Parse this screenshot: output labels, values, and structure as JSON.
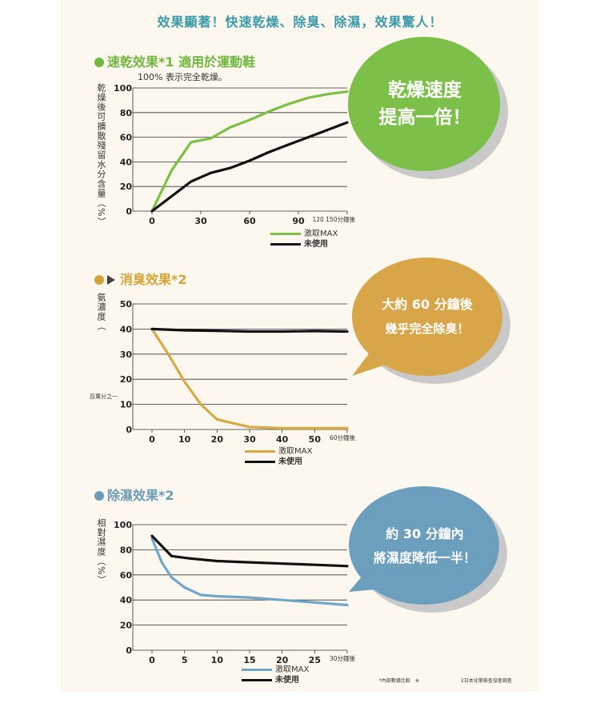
{
  "headline": "效果顯著！快速乾燥、除臭、除濕，效果驚人！",
  "colors": {
    "green": "#7ac143",
    "gold": "#d9a944",
    "blue": "#6fa7c8",
    "black": "#111111",
    "bubble_green": "#7cc04a",
    "bubble_gold": "#d8a548",
    "bubble_blue": "#6c9ebd"
  },
  "sections": [
    {
      "title": "速乾效果*1 適用於運動鞋",
      "note": "100% 表示完全乾燥。",
      "ylabel": "乾燥後可擴散殘留水分含量（%）",
      "legend": [
        "激取MAX",
        "未使用"
      ]
    },
    {
      "title": "消臭效果*2",
      "ylabel": "氨濃度（",
      "unit_note": "百萬分之一",
      "legend": [
        "激取MAX",
        "未使用"
      ]
    },
    {
      "title": "除濕效果*2",
      "ylabel": "相對濕度（%）",
      "legend": [
        "激取MAX",
        "未使用"
      ]
    }
  ],
  "bubbles": [
    {
      "line1": "乾燥速度",
      "line2": "提高一倍！"
    },
    {
      "line1": "大約 60 分鐘後",
      "line2": "幾乎完全除臭！"
    },
    {
      "line1": "約 30 分鐘內",
      "line2": "將濕度降低一半！"
    }
  ],
  "footnotes": [
    "*內部數據比較　※",
    "2日本化學檢查協會調查"
  ],
  "chart_data": [
    {
      "type": "line",
      "ylim": [
        0,
        100
      ],
      "yticks": [
        "0",
        "20",
        "40",
        "60",
        "80",
        "100"
      ],
      "xticks": [
        "0",
        "30",
        "60",
        "90"
      ],
      "xtick_extra": "120 150分鐘後",
      "series": [
        {
          "name": "激取MAX",
          "x": [
            0,
            15,
            30,
            45,
            60,
            75,
            90,
            105,
            120,
            135,
            150
          ],
          "values": [
            0,
            33,
            56,
            59,
            68,
            74,
            81,
            87,
            92,
            95,
            97
          ]
        },
        {
          "name": "未使用",
          "x": [
            0,
            15,
            30,
            45,
            60,
            75,
            90,
            105,
            120,
            135,
            150
          ],
          "values": [
            0,
            12,
            24,
            31,
            35,
            41,
            48,
            54,
            60,
            66,
            72
          ]
        }
      ]
    },
    {
      "type": "line",
      "ylim": [
        0,
        50
      ],
      "yticks": [
        "0",
        "10",
        "20",
        "30",
        "40",
        "50"
      ],
      "xticks": [
        "0",
        "10",
        "20",
        "30",
        "40",
        "50"
      ],
      "xtick_extra": "60分鐘後",
      "series": [
        {
          "name": "激取MAX",
          "x": [
            0,
            5,
            10,
            15,
            20,
            30,
            40,
            50,
            60
          ],
          "values": [
            40,
            30,
            19,
            10,
            4,
            1,
            0.5,
            0.5,
            0.5
          ]
        },
        {
          "name": "未使用",
          "x": [
            0,
            10,
            20,
            30,
            40,
            50,
            60
          ],
          "values": [
            40,
            39.5,
            39.3,
            39,
            39,
            39.2,
            39
          ]
        }
      ]
    },
    {
      "type": "line",
      "ylim": [
        0,
        100
      ],
      "yticks": [
        "0",
        "20",
        "40",
        "60",
        "80",
        "100"
      ],
      "xticks": [
        "0",
        "5",
        "10",
        "15",
        "20",
        "25"
      ],
      "xtick_extra": "30分鐘後",
      "series": [
        {
          "name": "激取MAX",
          "x": [
            0,
            1.5,
            3,
            5,
            7.5,
            10,
            15,
            20,
            25,
            30
          ],
          "values": [
            89,
            70,
            58,
            50,
            44,
            43,
            42,
            40,
            38,
            36
          ]
        },
        {
          "name": "未使用",
          "x": [
            0,
            3,
            6,
            10,
            15,
            20,
            25,
            30
          ],
          "values": [
            91,
            75,
            73,
            71,
            70,
            69,
            68,
            67
          ]
        }
      ]
    }
  ]
}
